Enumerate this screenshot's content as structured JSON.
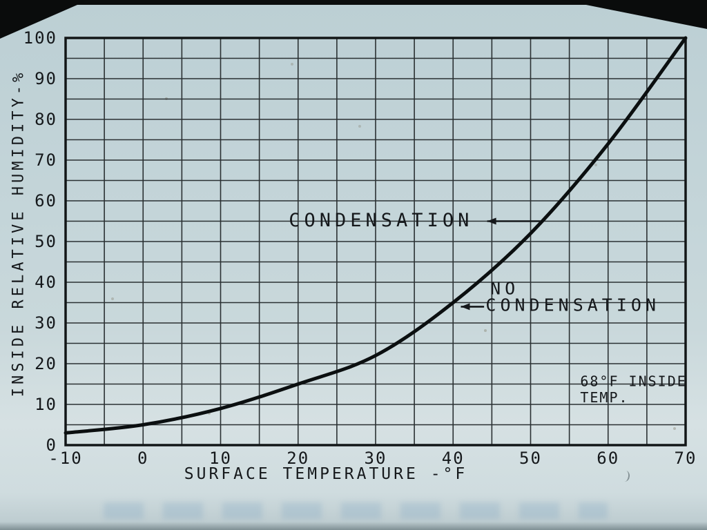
{
  "slide": {
    "background": "#c6d7da",
    "ink": "#15181b"
  },
  "chart_data": {
    "type": "line",
    "title": "",
    "xlabel": "SURFACE TEMPERATURE -°F",
    "ylabel": "INSIDE RELATIVE HUMIDITY-%",
    "xlim": [
      -10,
      70
    ],
    "ylim": [
      0,
      100
    ],
    "x_tick_step": 10,
    "y_tick_step": 10,
    "grid_step": 5,
    "grid": true,
    "legend": "none",
    "series": [
      {
        "name": "condensation-threshold-68F-inside",
        "x": [
          -10,
          0,
          10,
          20,
          30,
          40,
          50,
          60,
          70
        ],
        "y": [
          3,
          5,
          9,
          15,
          22,
          35,
          52,
          74,
          100
        ]
      }
    ],
    "annotations": [
      {
        "name": "condensation-label",
        "text": "CONDENSATION",
        "x": 18.8,
        "y": 53.7,
        "size": 27,
        "spacing": 6
      },
      {
        "name": "no-condensation-label-line1",
        "text": "NO",
        "x": 44.8,
        "y": 37,
        "size": 25,
        "spacing": 6
      },
      {
        "name": "no-condensation-label-line2",
        "text": "CONDENSATION",
        "x": 44.2,
        "y": 33,
        "size": 25,
        "spacing": 6
      },
      {
        "name": "inside-temp-note-line1",
        "text": "68°F INSIDE",
        "x": 56.4,
        "y": 14.5,
        "size": 20,
        "spacing": 2
      },
      {
        "name": "inside-temp-note-line2",
        "text": "TEMP.",
        "x": 56.4,
        "y": 10.5,
        "size": 20,
        "spacing": 2
      }
    ],
    "arrows": [
      {
        "name": "condensation-arrow",
        "from_x": 51.3,
        "from_y": 55,
        "to_x": 44.4,
        "to_y": 55
      },
      {
        "name": "no-condensation-arrow",
        "from_x": 44.0,
        "from_y": 34,
        "to_x": 41.0,
        "to_y": 34
      }
    ]
  }
}
